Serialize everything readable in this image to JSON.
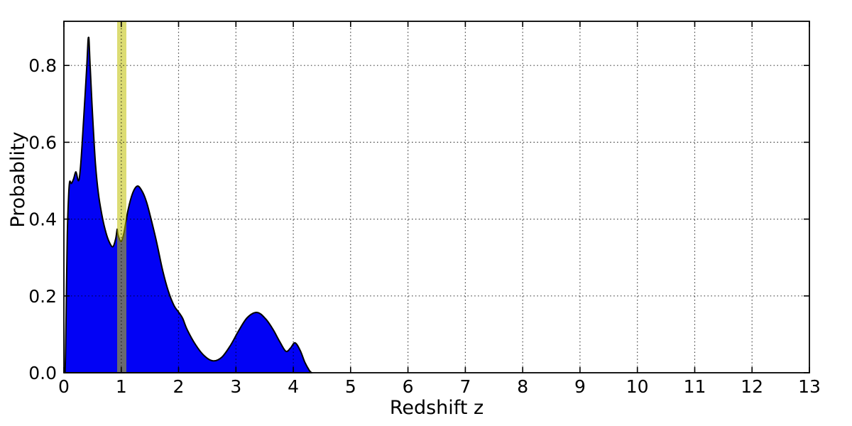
{
  "figure": {
    "background": "#ffffff",
    "axis_color": "#000000"
  },
  "chart_data": {
    "type": "area",
    "title": "",
    "xlabel": "Redshift  z",
    "ylabel": "Probablity",
    "xlim": [
      0,
      13
    ],
    "ylim": [
      0,
      0.915
    ],
    "grid": "dotted",
    "legend": "none",
    "xtick_values": [
      0,
      1,
      2,
      3,
      4,
      5,
      6,
      7,
      8,
      9,
      10,
      11,
      12,
      13
    ],
    "xtick_labels": [
      "0",
      "1",
      "2",
      "3",
      "4",
      "5",
      "6",
      "7",
      "8",
      "9",
      "10",
      "11",
      "12",
      "13"
    ],
    "ytick_values": [
      0.0,
      0.2,
      0.4,
      0.6,
      0.8
    ],
    "ytick_labels": [
      "0.0",
      "0.2",
      "0.4",
      "0.6",
      "0.8"
    ],
    "fill_color": "#0202f5",
    "edge_color": "#000000",
    "highlight_band": {
      "name": "redshift-1-band",
      "x0": 0.929,
      "x1": 1.09,
      "color": "#bfbf00",
      "alpha": 0.55
    },
    "series": [
      {
        "name": "redshift-probability-density",
        "x": [
          0.02,
          0.03,
          0.045,
          0.06,
          0.08,
          0.1,
          0.13,
          0.17,
          0.21,
          0.25,
          0.28,
          0.32,
          0.36,
          0.4,
          0.42,
          0.43,
          0.44,
          0.46,
          0.5,
          0.55,
          0.6,
          0.66,
          0.72,
          0.78,
          0.85,
          0.9,
          0.925,
          0.93,
          0.94,
          0.96,
          1.0,
          1.05,
          1.12,
          1.2,
          1.28,
          1.36,
          1.44,
          1.52,
          1.62,
          1.72,
          1.82,
          1.92,
          2.0,
          2.07,
          2.15,
          2.3,
          2.45,
          2.6,
          2.75,
          2.9,
          3.05,
          3.2,
          3.37,
          3.52,
          3.65,
          3.76,
          3.87,
          3.95,
          4.03,
          4.12,
          4.2,
          4.28,
          4.32
        ],
        "y": [
          0.0,
          0.06,
          0.22,
          0.36,
          0.455,
          0.497,
          0.493,
          0.505,
          0.523,
          0.5,
          0.52,
          0.6,
          0.7,
          0.8,
          0.862,
          0.873,
          0.862,
          0.79,
          0.67,
          0.545,
          0.468,
          0.413,
          0.372,
          0.344,
          0.328,
          0.347,
          0.37,
          0.373,
          0.362,
          0.352,
          0.342,
          0.366,
          0.425,
          0.468,
          0.486,
          0.474,
          0.445,
          0.4,
          0.338,
          0.268,
          0.213,
          0.175,
          0.158,
          0.142,
          0.112,
          0.072,
          0.044,
          0.031,
          0.04,
          0.07,
          0.11,
          0.144,
          0.157,
          0.14,
          0.112,
          0.082,
          0.056,
          0.064,
          0.078,
          0.058,
          0.028,
          0.006,
          0.0
        ]
      }
    ]
  }
}
